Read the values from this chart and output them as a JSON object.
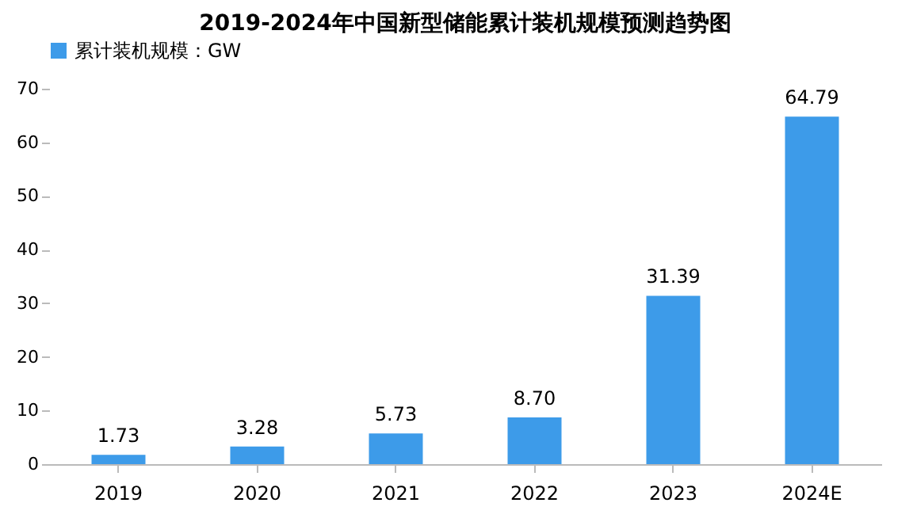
{
  "chart_data": {
    "type": "bar",
    "title": "2019-2024年中国新型储能累计装机规模预测趋势图",
    "categories": [
      "2019",
      "2020",
      "2021",
      "2022",
      "2023",
      "2024E"
    ],
    "series": [
      {
        "name": "累计装机规模：GW",
        "color": "#3d9be9",
        "values": [
          1.73,
          3.28,
          5.73,
          8.7,
          31.39,
          64.79
        ]
      }
    ],
    "value_labels": [
      "1.73",
      "3.28",
      "5.73",
      "8.70",
      "31.39",
      "64.79"
    ],
    "ylim": [
      0,
      70
    ],
    "yticks": [
      0,
      10,
      20,
      30,
      40,
      50,
      60,
      70
    ],
    "grid": false,
    "legend": "top"
  }
}
